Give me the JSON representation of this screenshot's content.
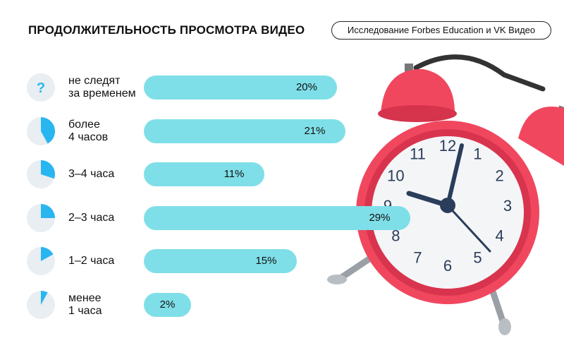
{
  "title": "ПРОДОЛЖИТЕЛЬНОСТЬ ПРОСМОТРА ВИДЕО",
  "source": "Исследование Forbes Education и VK Видео",
  "question_mark": "?",
  "colors": {
    "bar": "#7fdfe8",
    "pie_fill": "#29b6f0",
    "pie_bg": "#e8eef2",
    "clock": "#f0475f"
  },
  "chart_data": {
    "type": "bar",
    "orientation": "horizontal",
    "unit": "%",
    "categories": [
      "не следят за временем",
      "более 4 часов",
      "3–4 часа",
      "2–3 часа",
      "1–2 часа",
      "менее 1 часа"
    ],
    "values": [
      20,
      21,
      11,
      29,
      15,
      2
    ],
    "value_labels": [
      "20%",
      "21%",
      "11%",
      "29%",
      "15%",
      "2%"
    ]
  },
  "rows": [
    {
      "label": [
        "не следят",
        "за временем"
      ],
      "icon": "question-icon",
      "pie_fraction": null
    },
    {
      "label": [
        "более",
        "4 часов"
      ],
      "icon": "pie-icon",
      "pie_fraction": 0.42
    },
    {
      "label": [
        "3–4 часа"
      ],
      "icon": "pie-icon",
      "pie_fraction": 0.3
    },
    {
      "label": [
        "2–3 часа"
      ],
      "icon": "pie-icon",
      "pie_fraction": 0.25
    },
    {
      "label": [
        "1–2 часа"
      ],
      "icon": "pie-icon",
      "pie_fraction": 0.17
    },
    {
      "label": [
        "менее",
        "1 часа"
      ],
      "icon": "pie-icon",
      "pie_fraction": 0.08
    }
  ],
  "clock_numbers": [
    "12",
    "1",
    "2",
    "3",
    "4",
    "5",
    "6",
    "7",
    "8",
    "9",
    "10",
    "11"
  ]
}
